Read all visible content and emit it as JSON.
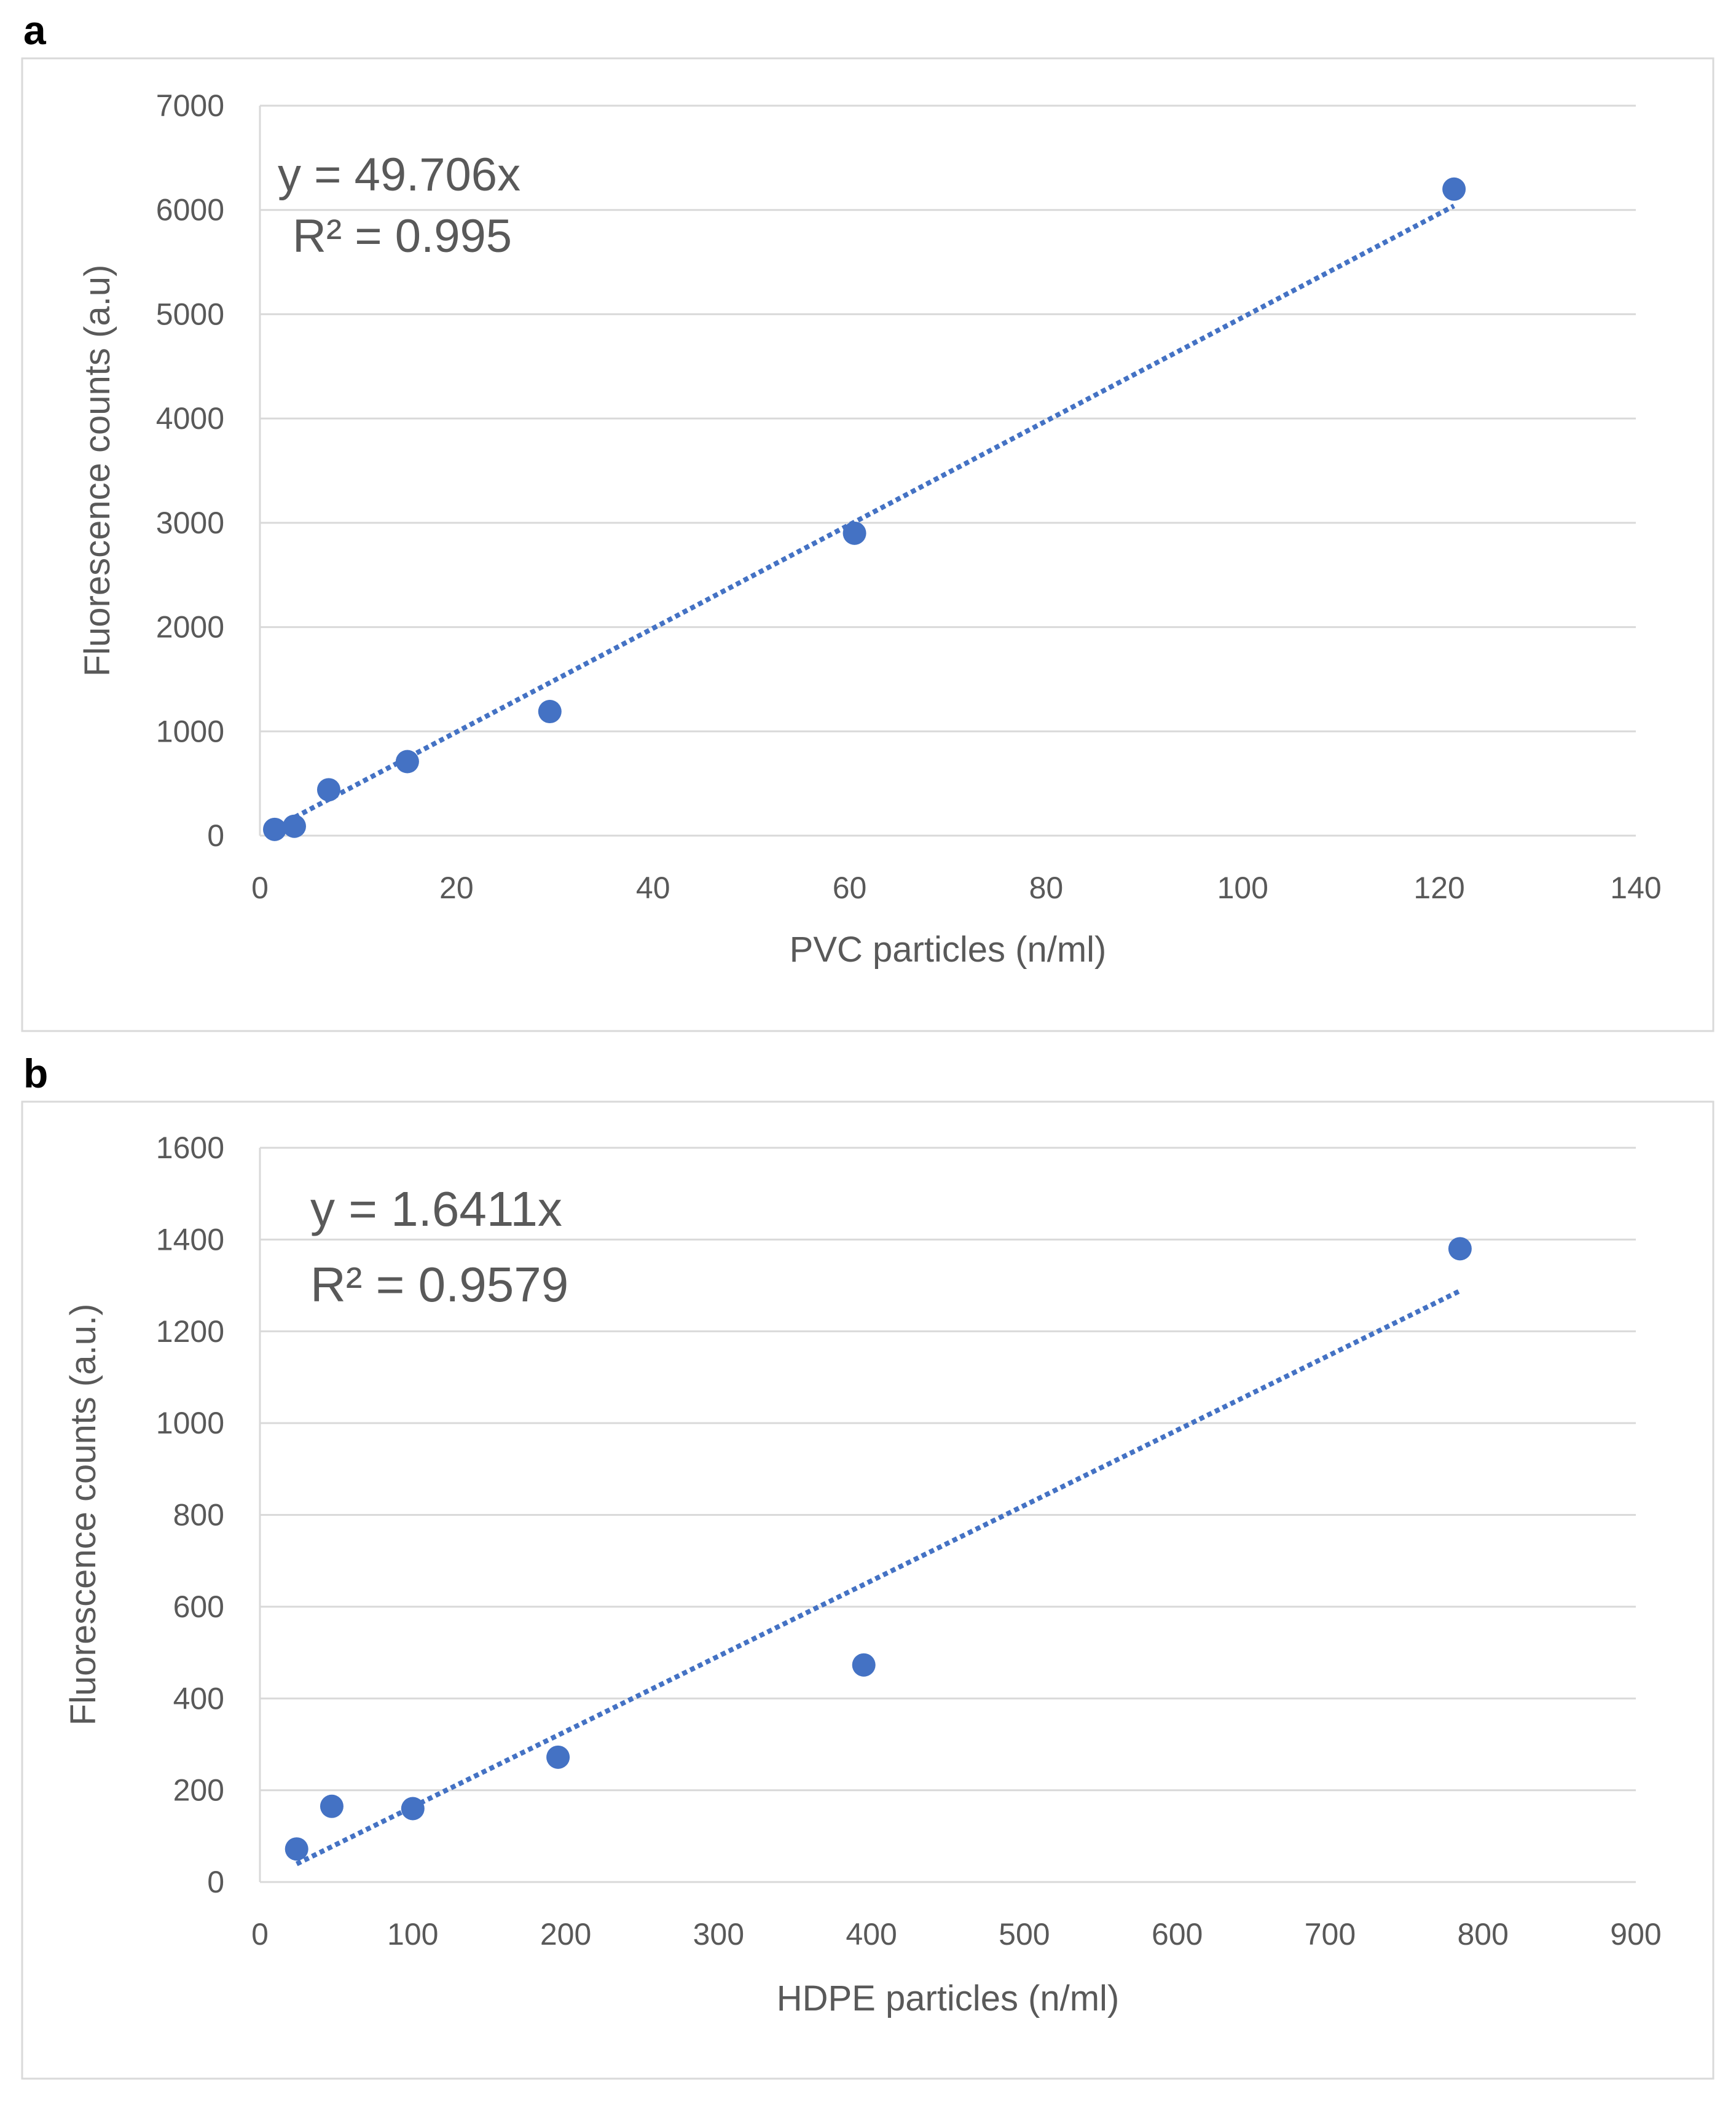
{
  "chart_data": [
    {
      "panel_label": "a",
      "type": "scatter",
      "xlabel": "PVC particles (n/ml)",
      "ylabel": "Fluorescence counts (a.u)",
      "xlim": [
        0,
        140
      ],
      "ylim": [
        0,
        7000
      ],
      "xticks": [
        "0",
        "20",
        "40",
        "60",
        "80",
        "100",
        "120",
        "140"
      ],
      "yticks": [
        "0",
        "1000",
        "2000",
        "3000",
        "4000",
        "5000",
        "6000",
        "7000"
      ],
      "grid": true,
      "series": [
        {
          "name": "PVC",
          "color": "#4472C4",
          "x": [
            1.5,
            3.5,
            7,
            15,
            29.5,
            60.5,
            121.5
          ],
          "y": [
            60,
            90,
            440,
            710,
            1190,
            2900,
            6200
          ]
        }
      ],
      "trendline": {
        "slope": 49.706,
        "x_range": [
          2,
          121.5
        ],
        "style": "dotted",
        "color": "#4472C4"
      },
      "equation": "y = 49.706x",
      "r_squared": "R² = 0.995"
    },
    {
      "panel_label": "b",
      "type": "scatter",
      "xlabel": "HDPE particles (n/ml)",
      "ylabel": "Fluorescence counts (a.u.)",
      "xlim": [
        0,
        900
      ],
      "ylim": [
        0,
        1600
      ],
      "xticks": [
        "0",
        "100",
        "200",
        "300",
        "400",
        "500",
        "600",
        "700",
        "800",
        "900"
      ],
      "yticks": [
        "0",
        "200",
        "400",
        "600",
        "800",
        "1000",
        "1200",
        "1400",
        "1600"
      ],
      "grid": true,
      "series": [
        {
          "name": "HDPE",
          "color": "#4472C4",
          "x": [
            24,
            47,
            100,
            195,
            395,
            785
          ],
          "y": [
            72,
            165,
            160,
            272,
            473,
            1380
          ]
        }
      ],
      "trendline": {
        "slope": 1.6411,
        "x_range": [
          24,
          785
        ],
        "style": "dotted",
        "color": "#4472C4"
      },
      "equation": "y = 1.6411x",
      "r_squared": "R² = 0.9579"
    }
  ]
}
